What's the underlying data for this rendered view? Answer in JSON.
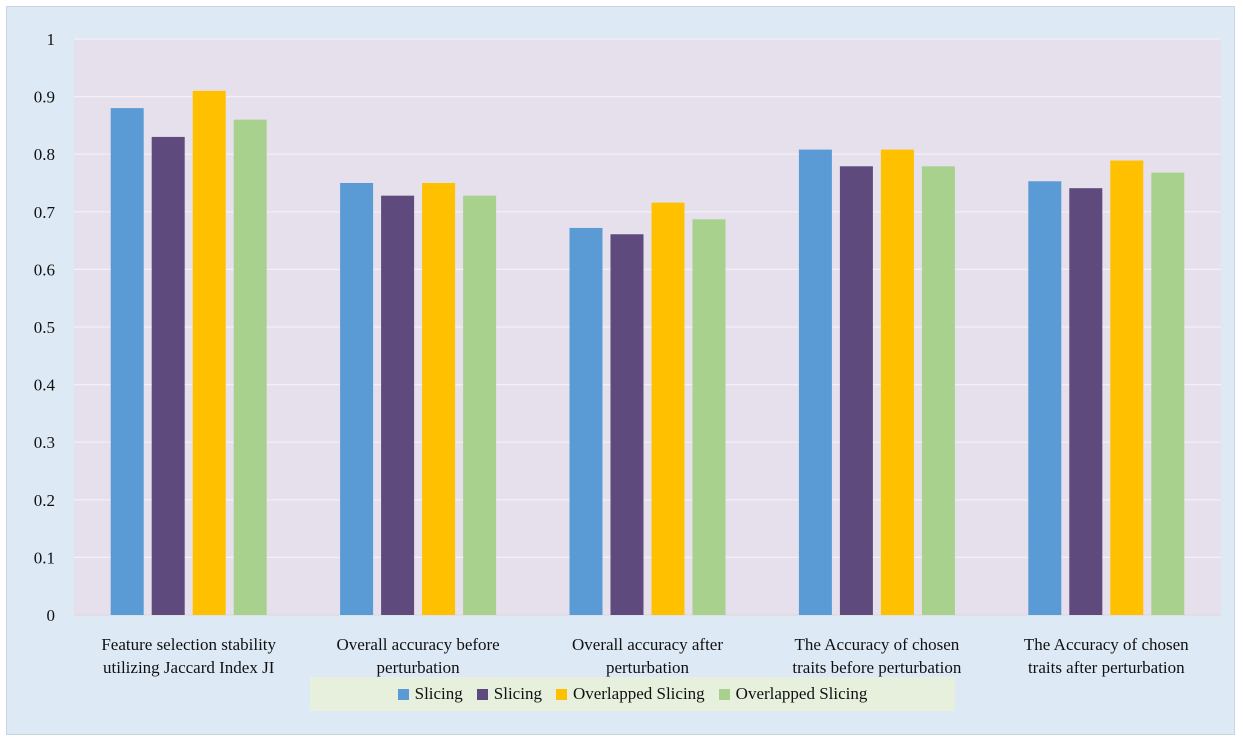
{
  "chart_data": {
    "type": "bar",
    "title": "",
    "xlabel": "",
    "ylabel": "",
    "ylim": [
      0,
      1
    ],
    "yticks": [
      "0",
      "0.1",
      "0.2",
      "0.3",
      "0.4",
      "0.5",
      "0.6",
      "0.7",
      "0.8",
      "0.9",
      "1"
    ],
    "grid": true,
    "legend_position": "bottom",
    "categories": [
      [
        "Feature selection stability",
        "utilizing Jaccard Index JI"
      ],
      [
        "Overall accuracy before",
        "perturbation"
      ],
      [
        "Overall accuracy after",
        "perturbation"
      ],
      [
        "The Accuracy of chosen",
        "traits before perturbation"
      ],
      [
        "The Accuracy of chosen",
        "traits after perturbation"
      ]
    ],
    "series": [
      {
        "name": "Slicing",
        "color": "#5b9bd5",
        "values": [
          0.88,
          0.75,
          0.672,
          0.808,
          0.753
        ]
      },
      {
        "name": "Slicing",
        "color": "#5e4a7c",
        "values": [
          0.83,
          0.728,
          0.661,
          0.779,
          0.741
        ]
      },
      {
        "name": "Overlapped Slicing",
        "color": "#ffc000",
        "values": [
          0.91,
          0.75,
          0.716,
          0.808,
          0.789
        ]
      },
      {
        "name": "Overlapped Slicing",
        "color": "#a9d18e",
        "values": [
          0.86,
          0.728,
          0.687,
          0.779,
          0.768
        ]
      }
    ],
    "plot_background": "#e6e0ec",
    "frame_background": "#dde9f5",
    "legend_background": "#e6f0dd"
  }
}
